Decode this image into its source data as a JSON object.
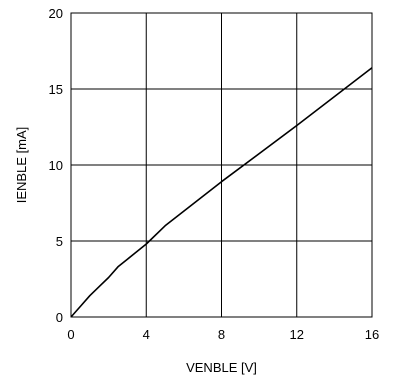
{
  "chart_data": {
    "type": "line",
    "title": "",
    "xlabel": "VENBLE [V]",
    "ylabel": "IENBLE [mA]",
    "xlim": [
      0,
      16
    ],
    "ylim": [
      0,
      20
    ],
    "xticks": [
      0,
      4,
      8,
      12,
      16
    ],
    "yticks": [
      0,
      5,
      10,
      15,
      20
    ],
    "grid": true,
    "series": [
      {
        "x": [
          0,
          0.5,
          1,
          1.5,
          2,
          2.5,
          3,
          4,
          5,
          8,
          12,
          16
        ],
        "y": [
          0,
          0.7,
          1.4,
          2.0,
          2.6,
          3.3,
          3.8,
          4.8,
          6.0,
          8.9,
          12.6,
          16.4
        ]
      }
    ],
    "colors": {
      "line": "#000000",
      "grid": "#000000"
    }
  }
}
